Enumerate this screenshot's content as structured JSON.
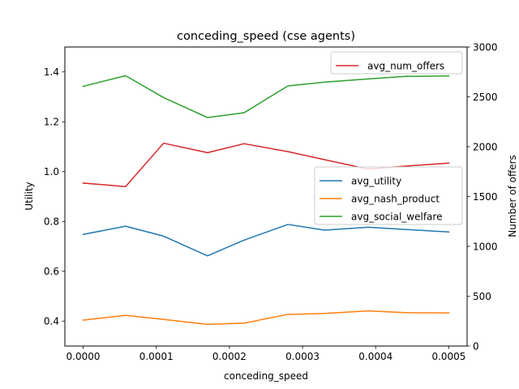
{
  "chart_data": {
    "type": "line",
    "title": "conceding_speed (cse agents)",
    "xlabel": "conceding_speed",
    "ylabel": "Utility",
    "y2label": "Number of offers",
    "xlim": [
      -2.5e-05,
      0.000525
    ],
    "ylim": [
      0.3,
      1.5
    ],
    "y2lim": [
      0,
      3000
    ],
    "x": [
      0.0,
      5.8e-05,
      0.00011,
      0.00017,
      0.00022,
      0.00028,
      0.00033,
      0.00039,
      0.00044,
      0.0005
    ],
    "x_ticks": [
      {
        "value": 0.0,
        "label": "0.0000"
      },
      {
        "value": 0.0001,
        "label": "0.0001"
      },
      {
        "value": 0.0002,
        "label": "0.0002"
      },
      {
        "value": 0.0003,
        "label": "0.0003"
      },
      {
        "value": 0.0004,
        "label": "0.0004"
      },
      {
        "value": 0.0005,
        "label": "0.0005"
      }
    ],
    "y_ticks": [
      {
        "value": 0.4,
        "label": "0.4"
      },
      {
        "value": 0.6,
        "label": "0.6"
      },
      {
        "value": 0.8,
        "label": "0.8"
      },
      {
        "value": 1.0,
        "label": "1.0"
      },
      {
        "value": 1.2,
        "label": "1.2"
      },
      {
        "value": 1.4,
        "label": "1.4"
      }
    ],
    "y2_ticks": [
      {
        "value": 0,
        "label": "0"
      },
      {
        "value": 500,
        "label": "500"
      },
      {
        "value": 1000,
        "label": "1000"
      },
      {
        "value": 1500,
        "label": "1500"
      },
      {
        "value": 2000,
        "label": "2000"
      },
      {
        "value": 2500,
        "label": "2500"
      },
      {
        "value": 3000,
        "label": "3000"
      }
    ],
    "series": [
      {
        "name": "avg_utility",
        "axis": "left",
        "color": "#1f77b4",
        "values": [
          0.748,
          0.781,
          0.741,
          0.662,
          0.725,
          0.788,
          0.765,
          0.777,
          0.768,
          0.758
        ]
      },
      {
        "name": "avg_nash_product",
        "axis": "left",
        "color": "#ff7f0e",
        "values": [
          0.404,
          0.423,
          0.407,
          0.387,
          0.392,
          0.427,
          0.431,
          0.441,
          0.434,
          0.433
        ]
      },
      {
        "name": "avg_social_welfare",
        "axis": "left",
        "color": "#2ca02c",
        "values": [
          1.342,
          1.385,
          1.297,
          1.217,
          1.236,
          1.344,
          1.359,
          1.372,
          1.382,
          1.384
        ]
      },
      {
        "name": "avg_num_offers",
        "axis": "right",
        "color": "#d62728",
        "values": [
          1635,
          1600,
          2035,
          1940,
          2030,
          1950,
          1870,
          1775,
          1805,
          1835
        ]
      }
    ],
    "legend_right_axis": {
      "placement": "upper right",
      "entries": [
        "avg_num_offers"
      ]
    },
    "legend_left_axis": {
      "placement": "center right",
      "entries": [
        "avg_utility",
        "avg_nash_product",
        "avg_social_welfare"
      ]
    },
    "grid": false
  }
}
